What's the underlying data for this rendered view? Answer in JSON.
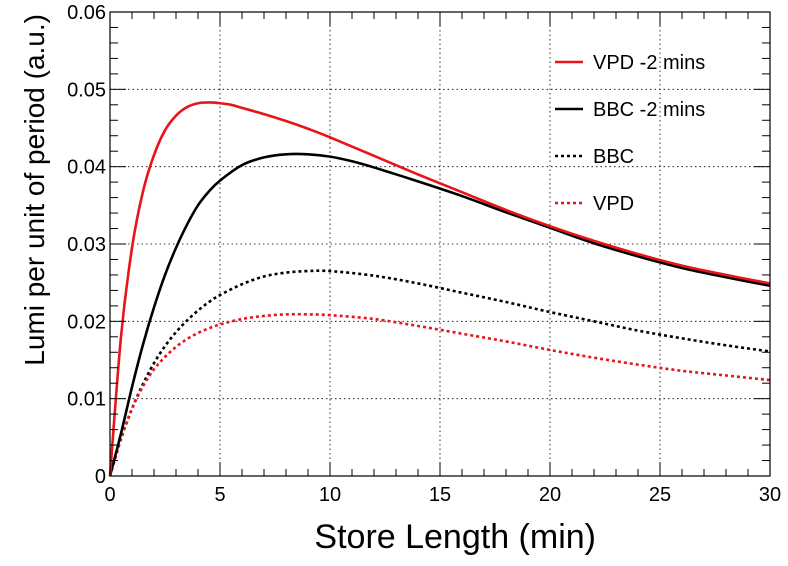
{
  "chart_data": {
    "type": "line",
    "title": "",
    "xlabel": "Store Length (min)",
    "ylabel": "Lumi per unit of period (a.u.)",
    "xlim": [
      0,
      30
    ],
    "ylim": [
      0,
      0.06
    ],
    "x_ticks": [
      0,
      5,
      10,
      15,
      20,
      25,
      30
    ],
    "x_tick_labels": [
      "0",
      "5",
      "10",
      "15",
      "20",
      "25",
      "30"
    ],
    "y_ticks": [
      0,
      0.01,
      0.02,
      0.03,
      0.04,
      0.05,
      0.06
    ],
    "y_tick_labels": [
      "0",
      "0.01",
      "0.02",
      "0.03",
      "0.04",
      "0.05",
      "0.06"
    ],
    "grid": true,
    "legend_position": "top-right",
    "series": [
      {
        "name": "VPD -2 mins",
        "color": "#e8141a",
        "style": "solid",
        "x": [
          0,
          0.5,
          1,
          1.5,
          2,
          2.5,
          3,
          3.5,
          4,
          4.5,
          5,
          5.5,
          6,
          7,
          8,
          9,
          10,
          12,
          14,
          16,
          18,
          20,
          22,
          24,
          26,
          28,
          30
        ],
        "y": [
          0,
          0.018,
          0.0295,
          0.0368,
          0.0415,
          0.0447,
          0.0466,
          0.0477,
          0.0482,
          0.0483,
          0.0482,
          0.048,
          0.0476,
          0.0468,
          0.0459,
          0.0449,
          0.0438,
          0.0414,
          0.039,
          0.0367,
          0.0344,
          0.0323,
          0.0304,
          0.0287,
          0.0272,
          0.026,
          0.0249
        ]
      },
      {
        "name": "BBC -2 mins",
        "color": "#000000",
        "style": "solid",
        "x": [
          0,
          0.5,
          1,
          1.5,
          2,
          2.5,
          3,
          3.5,
          4,
          4.5,
          5,
          6,
          7,
          8,
          9,
          10,
          11,
          12,
          14,
          16,
          18,
          20,
          22,
          24,
          26,
          28,
          30
        ],
        "y": [
          0,
          0.0055,
          0.0115,
          0.017,
          0.0218,
          0.026,
          0.0295,
          0.0325,
          0.035,
          0.0368,
          0.0382,
          0.0402,
          0.0412,
          0.0416,
          0.0416,
          0.0413,
          0.0407,
          0.0399,
          0.0381,
          0.0362,
          0.0341,
          0.0321,
          0.0301,
          0.0284,
          0.0269,
          0.0257,
          0.0246
        ]
      },
      {
        "name": "BBC",
        "color": "#000000",
        "style": "dotted",
        "x": [
          0,
          0.5,
          1,
          1.5,
          2,
          2.5,
          3,
          3.5,
          4,
          4.5,
          5,
          6,
          7,
          8,
          9,
          10,
          12,
          14,
          16,
          18,
          20,
          22,
          24,
          26,
          28,
          30
        ],
        "y": [
          0,
          0.0048,
          0.0087,
          0.0119,
          0.0146,
          0.0168,
          0.0186,
          0.0201,
          0.0214,
          0.0225,
          0.0234,
          0.0248,
          0.0258,
          0.0263,
          0.0265,
          0.0265,
          0.0259,
          0.0249,
          0.0237,
          0.0225,
          0.0212,
          0.02,
          0.0188,
          0.0178,
          0.0169,
          0.0161
        ]
      },
      {
        "name": "VPD",
        "color": "#e8141a",
        "style": "dotted",
        "x": [
          0,
          0.5,
          1,
          1.5,
          2,
          2.5,
          3,
          3.5,
          4,
          4.5,
          5,
          6,
          7,
          8,
          9,
          10,
          12,
          14,
          16,
          18,
          20,
          22,
          24,
          26,
          28,
          30
        ],
        "y": [
          0,
          0.0048,
          0.0087,
          0.0116,
          0.0138,
          0.0154,
          0.0167,
          0.0177,
          0.0185,
          0.0191,
          0.0196,
          0.0203,
          0.0207,
          0.0209,
          0.0209,
          0.0208,
          0.0203,
          0.0194,
          0.0184,
          0.0174,
          0.0163,
          0.0153,
          0.0144,
          0.0136,
          0.013,
          0.0124
        ]
      }
    ]
  }
}
